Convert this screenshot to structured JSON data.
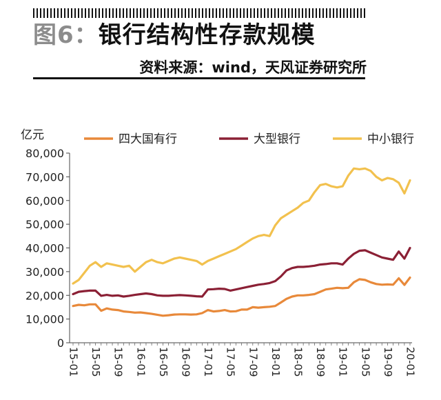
{
  "figure": {
    "label": "图6：",
    "title": "银行结构性存款规模",
    "source": "资料来源：wind，天风证券研究所"
  },
  "chart_data": {
    "type": "line",
    "ylabel": "亿元",
    "ylim": [
      0,
      80000
    ],
    "yticks": [
      0,
      10000,
      20000,
      30000,
      40000,
      50000,
      60000,
      70000,
      80000
    ],
    "ytick_labels": [
      "0",
      "10,000",
      "20,000",
      "30,000",
      "40,000",
      "50,000",
      "60,000",
      "70,000",
      "80,000"
    ],
    "xtick_labels": [
      "15-01",
      "15-05",
      "15-09",
      "16-01",
      "16-05",
      "16-09",
      "17-01",
      "17-05",
      "17-09",
      "18-01",
      "18-05",
      "18-09",
      "19-01",
      "19-05",
      "19-09",
      "20-01"
    ],
    "x": [
      "15-01",
      "15-02",
      "15-03",
      "15-04",
      "15-05",
      "15-06",
      "15-07",
      "15-08",
      "15-09",
      "15-10",
      "15-11",
      "15-12",
      "16-01",
      "16-02",
      "16-03",
      "16-04",
      "16-05",
      "16-06",
      "16-07",
      "16-08",
      "16-09",
      "16-10",
      "16-11",
      "16-12",
      "17-01",
      "17-02",
      "17-03",
      "17-04",
      "17-05",
      "17-06",
      "17-07",
      "17-08",
      "17-09",
      "17-10",
      "17-11",
      "17-12",
      "18-01",
      "18-02",
      "18-03",
      "18-04",
      "18-05",
      "18-06",
      "18-07",
      "18-08",
      "18-09",
      "18-10",
      "18-11",
      "18-12",
      "19-01",
      "19-02",
      "19-03",
      "19-04",
      "19-05",
      "19-06",
      "19-07",
      "19-08",
      "19-09",
      "19-10",
      "19-11",
      "19-12",
      "20-01"
    ],
    "legend_position": "top",
    "grid": false,
    "series": [
      {
        "name": "四大国有行",
        "color": "#e8893a",
        "values": [
          15500,
          16000,
          15800,
          16200,
          16200,
          13500,
          14500,
          14000,
          13800,
          13200,
          13000,
          12700,
          12800,
          12500,
          12200,
          11800,
          11400,
          11600,
          11900,
          12000,
          12000,
          11900,
          12000,
          12500,
          13800,
          13200,
          13400,
          13800,
          13200,
          13300,
          14000,
          14000,
          15000,
          14800,
          15000,
          15200,
          15500,
          17000,
          18500,
          19500,
          20000,
          20000,
          20200,
          20500,
          21500,
          22500,
          22800,
          23200,
          23000,
          23200,
          25500,
          26800,
          26500,
          25500,
          24800,
          24500,
          24600,
          24500,
          27200,
          24400,
          27500
        ]
      },
      {
        "name": "大型银行",
        "color": "#8b2035",
        "values": [
          20500,
          21500,
          21800,
          22000,
          22000,
          19800,
          20200,
          19800,
          20000,
          19500,
          19800,
          20200,
          20500,
          20800,
          20500,
          20000,
          19800,
          19800,
          20000,
          20100,
          20000,
          19800,
          19600,
          19500,
          22500,
          22600,
          22800,
          22700,
          22000,
          22500,
          23000,
          23500,
          24000,
          24500,
          24800,
          25200,
          26000,
          28000,
          30500,
          31500,
          32000,
          32000,
          32200,
          32500,
          33000,
          33200,
          33500,
          33500,
          33000,
          35500,
          37500,
          38800,
          39000,
          38000,
          37000,
          36000,
          35500,
          35000,
          38500,
          35500,
          40000
        ]
      },
      {
        "name": "中小银行",
        "color": "#f2c14e",
        "values": [
          25000,
          26500,
          29500,
          32500,
          34000,
          32000,
          33500,
          33000,
          32500,
          32000,
          32500,
          30000,
          32000,
          34000,
          35000,
          34000,
          33500,
          34500,
          35500,
          36000,
          35500,
          35000,
          34500,
          33000,
          34500,
          35500,
          36500,
          37500,
          38500,
          39500,
          41000,
          42500,
          44000,
          45000,
          45500,
          45000,
          49500,
          52500,
          54000,
          55500,
          57000,
          59000,
          60000,
          63500,
          66500,
          67000,
          66000,
          65500,
          66000,
          70500,
          73500,
          73200,
          73500,
          72500,
          70000,
          68500,
          69500,
          69000,
          67500,
          63000,
          68500
        ]
      }
    ]
  }
}
